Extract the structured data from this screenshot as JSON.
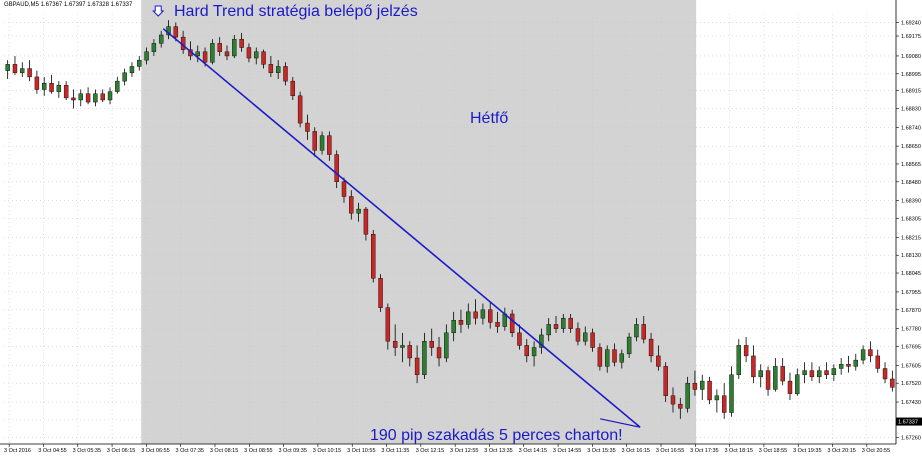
{
  "header": {
    "symbol": "GBPAUD,M5",
    "ohlc": "1.67367 1.67397 1.67328 1.67337"
  },
  "annotations": {
    "entry_signal": "Hard Trend stratégia belépő jelzés",
    "day_label": "Hétfő",
    "result": "190 pip szakadás 5 perces charton!"
  },
  "colors": {
    "background": "#ffffff",
    "highlight": "#d3d3d3",
    "bull": "#2e7d32",
    "bear": "#c62828",
    "wick": "#000000",
    "trendline": "#1a1ac8",
    "grid": "#c8c8c8"
  },
  "chart_data": {
    "type": "candlestick",
    "timeframe": "M5",
    "y_axis": {
      "ticks": [
        "1.69240",
        "1.69175",
        "1.69080",
        "1.68995",
        "1.68915",
        "1.68830",
        "1.68740",
        "1.68650",
        "1.68565",
        "1.68480",
        "1.68390",
        "1.68305",
        "1.68215",
        "1.68130",
        "1.68045",
        "1.67955",
        "1.67870",
        "1.67780",
        "1.67695",
        "1.67605",
        "1.67520",
        "1.67430",
        "1.67345",
        "1.67260"
      ],
      "current_price": "1.67337",
      "ylim": [
        1.6723,
        1.6928
      ]
    },
    "x_axis": {
      "ticks": [
        "3 Oct 2016",
        "3 Oct 04:55",
        "3 Oct 05:35",
        "3 Oct 06:15",
        "3 Oct 06:55",
        "3 Oct 07:35",
        "3 Oct 08:15",
        "3 Oct 08:55",
        "3 Oct 09:35",
        "3 Oct 10:15",
        "3 Oct 10:55",
        "3 Oct 11:35",
        "3 Oct 12:15",
        "3 Oct 12:55",
        "3 Oct 13:35",
        "3 Oct 14:15",
        "3 Oct 14:55",
        "3 Oct 15:35",
        "3 Oct 16:15",
        "3 Oct 16:55",
        "3 Oct 17:35",
        "3 Oct 18:15",
        "3 Oct 18:55",
        "3 Oct 19:35",
        "3 Oct 20:15",
        "3 Oct 20:55"
      ]
    },
    "highlight_range": {
      "from": "3 Oct 06:55",
      "to": "3 Oct 17:35"
    },
    "trendline": {
      "from": {
        "time": "3 Oct 07:00",
        "price": 1.6921
      },
      "to": {
        "time": "3 Oct 16:55",
        "price": 1.6731
      }
    },
    "candles": [
      [
        1.6901,
        1.6906,
        1.6897,
        1.6904
      ],
      [
        1.6904,
        1.6908,
        1.6899,
        1.69
      ],
      [
        1.69,
        1.6905,
        1.6898,
        1.6902
      ],
      [
        1.6902,
        1.6906,
        1.6896,
        1.6898
      ],
      [
        1.6898,
        1.6901,
        1.689,
        1.6892
      ],
      [
        1.6892,
        1.6898,
        1.6889,
        1.6895
      ],
      [
        1.6895,
        1.6899,
        1.689,
        1.6891
      ],
      [
        1.6891,
        1.6896,
        1.6888,
        1.6894
      ],
      [
        1.6894,
        1.6896,
        1.6887,
        1.6888
      ],
      [
        1.6888,
        1.6892,
        1.6883,
        1.6887
      ],
      [
        1.6887,
        1.6892,
        1.6884,
        1.689
      ],
      [
        1.689,
        1.6893,
        1.6885,
        1.6886
      ],
      [
        1.6886,
        1.6892,
        1.6884,
        1.689
      ],
      [
        1.689,
        1.6892,
        1.6886,
        1.6887
      ],
      [
        1.6887,
        1.6893,
        1.6885,
        1.6891
      ],
      [
        1.6891,
        1.6898,
        1.689,
        1.6896
      ],
      [
        1.6896,
        1.6902,
        1.6894,
        1.69
      ],
      [
        1.69,
        1.6905,
        1.6898,
        1.6903
      ],
      [
        1.6903,
        1.6908,
        1.6901,
        1.6906
      ],
      [
        1.6906,
        1.6912,
        1.6904,
        1.691
      ],
      [
        1.691,
        1.6916,
        1.6908,
        1.6914
      ],
      [
        1.6914,
        1.692,
        1.6912,
        1.6918
      ],
      [
        1.6918,
        1.6925,
        1.6916,
        1.6922
      ],
      [
        1.6922,
        1.6924,
        1.6915,
        1.6917
      ],
      [
        1.6917,
        1.692,
        1.6909,
        1.6911
      ],
      [
        1.6911,
        1.6915,
        1.6906,
        1.6908
      ],
      [
        1.6908,
        1.6913,
        1.6905,
        1.691
      ],
      [
        1.691,
        1.6912,
        1.6903,
        1.6905
      ],
      [
        1.6905,
        1.6916,
        1.6904,
        1.6914
      ],
      [
        1.6914,
        1.6917,
        1.6908,
        1.691
      ],
      [
        1.691,
        1.6913,
        1.6906,
        1.6908
      ],
      [
        1.6908,
        1.6918,
        1.6907,
        1.6916
      ],
      [
        1.6916,
        1.6919,
        1.691,
        1.6912
      ],
      [
        1.6912,
        1.6914,
        1.6905,
        1.6907
      ],
      [
        1.6907,
        1.6912,
        1.6904,
        1.691
      ],
      [
        1.691,
        1.6911,
        1.6902,
        1.6904
      ],
      [
        1.6904,
        1.6908,
        1.6898,
        1.69
      ],
      [
        1.69,
        1.6906,
        1.6897,
        1.6903
      ],
      [
        1.6903,
        1.6905,
        1.6894,
        1.6896
      ],
      [
        1.6896,
        1.6898,
        1.6887,
        1.6889
      ],
      [
        1.6889,
        1.6891,
        1.6874,
        1.6876
      ],
      [
        1.6876,
        1.688,
        1.6868,
        1.6872
      ],
      [
        1.6872,
        1.6874,
        1.686,
        1.6863
      ],
      [
        1.6863,
        1.6872,
        1.6861,
        1.687
      ],
      [
        1.687,
        1.6872,
        1.6858,
        1.6861
      ],
      [
        1.6861,
        1.6863,
        1.6845,
        1.6848
      ],
      [
        1.6848,
        1.685,
        1.6838,
        1.6841
      ],
      [
        1.6841,
        1.6844,
        1.683,
        1.6833
      ],
      [
        1.6833,
        1.6838,
        1.6829,
        1.6835
      ],
      [
        1.6835,
        1.6836,
        1.682,
        1.6823
      ],
      [
        1.6823,
        1.6825,
        1.68,
        1.6802
      ],
      [
        1.6802,
        1.6804,
        1.6786,
        1.6788
      ],
      [
        1.6788,
        1.679,
        1.6768,
        1.6772
      ],
      [
        1.6772,
        1.678,
        1.6765,
        1.6769
      ],
      [
        1.6769,
        1.6776,
        1.6762,
        1.677
      ],
      [
        1.677,
        1.6772,
        1.676,
        1.6764
      ],
      [
        1.6764,
        1.677,
        1.6752,
        1.6756
      ],
      [
        1.6756,
        1.6776,
        1.6754,
        1.6772
      ],
      [
        1.6772,
        1.6778,
        1.6765,
        1.6769
      ],
      [
        1.6769,
        1.6774,
        1.676,
        1.6764
      ],
      [
        1.6764,
        1.678,
        1.6762,
        1.6776
      ],
      [
        1.6776,
        1.6786,
        1.6772,
        1.6782
      ],
      [
        1.6782,
        1.6787,
        1.6776,
        1.678
      ],
      [
        1.678,
        1.679,
        1.6778,
        1.6786
      ],
      [
        1.6786,
        1.6792,
        1.678,
        1.6783
      ],
      [
        1.6783,
        1.679,
        1.678,
        1.6787
      ],
      [
        1.6787,
        1.6791,
        1.6778,
        1.6781
      ],
      [
        1.6781,
        1.6786,
        1.6776,
        1.6779
      ],
      [
        1.6779,
        1.6788,
        1.6777,
        1.6785
      ],
      [
        1.6785,
        1.6787,
        1.6774,
        1.6776
      ],
      [
        1.6776,
        1.678,
        1.6768,
        1.677
      ],
      [
        1.677,
        1.6773,
        1.6762,
        1.6765
      ],
      [
        1.6765,
        1.6772,
        1.676,
        1.6769
      ],
      [
        1.6769,
        1.6778,
        1.6766,
        1.6775
      ],
      [
        1.6775,
        1.6783,
        1.6772,
        1.678
      ],
      [
        1.678,
        1.6784,
        1.6776,
        1.6778
      ],
      [
        1.6778,
        1.6785,
        1.6776,
        1.6783
      ],
      [
        1.6783,
        1.6785,
        1.6776,
        1.6778
      ],
      [
        1.6778,
        1.6781,
        1.677,
        1.6772
      ],
      [
        1.6772,
        1.6779,
        1.677,
        1.6776
      ],
      [
        1.6776,
        1.6778,
        1.6767,
        1.6769
      ],
      [
        1.6769,
        1.6771,
        1.6758,
        1.676
      ],
      [
        1.676,
        1.677,
        1.6757,
        1.6768
      ],
      [
        1.6768,
        1.6771,
        1.676,
        1.6762
      ],
      [
        1.6762,
        1.6768,
        1.6759,
        1.6766
      ],
      [
        1.6766,
        1.6776,
        1.6764,
        1.6774
      ],
      [
        1.6774,
        1.6783,
        1.6772,
        1.678
      ],
      [
        1.678,
        1.6784,
        1.6771,
        1.6773
      ],
      [
        1.6773,
        1.6776,
        1.6762,
        1.6765
      ],
      [
        1.6765,
        1.677,
        1.6758,
        1.676
      ],
      [
        1.676,
        1.6762,
        1.6743,
        1.6746
      ],
      [
        1.6746,
        1.675,
        1.6738,
        1.6742
      ],
      [
        1.6742,
        1.6745,
        1.6735,
        1.674
      ],
      [
        1.674,
        1.6755,
        1.6738,
        1.6752
      ],
      [
        1.6752,
        1.6758,
        1.6746,
        1.6749
      ],
      [
        1.6749,
        1.6756,
        1.6744,
        1.6753
      ],
      [
        1.6753,
        1.6755,
        1.6742,
        1.6744
      ],
      [
        1.6744,
        1.6749,
        1.6738,
        1.6746
      ],
      [
        1.6746,
        1.6752,
        1.6735,
        1.6738
      ],
      [
        1.6738,
        1.676,
        1.6736,
        1.6756
      ],
      [
        1.6756,
        1.6773,
        1.6754,
        1.677
      ],
      [
        1.677,
        1.6774,
        1.6762,
        1.6765
      ],
      [
        1.6765,
        1.677,
        1.6752,
        1.6755
      ],
      [
        1.6755,
        1.6761,
        1.675,
        1.6758
      ],
      [
        1.6758,
        1.676,
        1.6746,
        1.6749
      ],
      [
        1.6749,
        1.6764,
        1.6748,
        1.676
      ],
      [
        1.676,
        1.6764,
        1.6751,
        1.6753
      ],
      [
        1.6753,
        1.6757,
        1.6744,
        1.6747
      ],
      [
        1.6747,
        1.6759,
        1.6746,
        1.6756
      ],
      [
        1.6756,
        1.6762,
        1.6752,
        1.6758
      ],
      [
        1.6758,
        1.6762,
        1.6753,
        1.6755
      ],
      [
        1.6755,
        1.676,
        1.6752,
        1.6758
      ],
      [
        1.6758,
        1.6762,
        1.6754,
        1.6756
      ],
      [
        1.6756,
        1.6761,
        1.6753,
        1.6759
      ],
      [
        1.6759,
        1.6764,
        1.6756,
        1.6761
      ],
      [
        1.6761,
        1.6765,
        1.6757,
        1.676
      ],
      [
        1.676,
        1.6766,
        1.6758,
        1.6763
      ],
      [
        1.6763,
        1.677,
        1.6761,
        1.6768
      ],
      [
        1.6768,
        1.6772,
        1.6762,
        1.6765
      ],
      [
        1.6765,
        1.6768,
        1.6757,
        1.6759
      ],
      [
        1.6759,
        1.6762,
        1.6752,
        1.6754
      ],
      [
        1.6754,
        1.6758,
        1.6748,
        1.675
      ]
    ]
  }
}
